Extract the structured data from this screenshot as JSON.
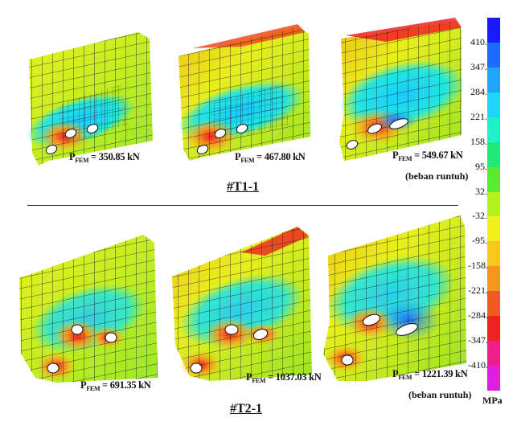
{
  "row1": {
    "title": "#T1-1",
    "panels": [
      {
        "p_prefix": "P",
        "p_sub": "FEM",
        "p_value": "= 350.85 kN",
        "note": ""
      },
      {
        "p_prefix": "P",
        "p_sub": "FEM",
        "p_value": "= 467.80 kN",
        "note": ""
      },
      {
        "p_prefix": "P",
        "p_sub": "FEM",
        "p_value": "= 549.67 kN",
        "note": "(beban runtuh)"
      }
    ]
  },
  "row2": {
    "title": "#T2-1",
    "panels": [
      {
        "p_prefix": "P",
        "p_sub": "FEM",
        "p_value": "= 691.35 kN",
        "note": ""
      },
      {
        "p_prefix": "P",
        "p_sub": "FEM",
        "p_value": "= 1037.03 kN",
        "note": ""
      },
      {
        "p_prefix": "P",
        "p_sub": "FEM",
        "p_value": "= 1221.39 kN",
        "note": "(beban runtuh)"
      }
    ]
  },
  "legend": {
    "unit": "MPa",
    "ticks": [
      "410.",
      "347.",
      "284.",
      "221.",
      "158.",
      "95.",
      "32.",
      "-32.",
      "-95.",
      "-158.",
      "-221.",
      "-284.",
      "-347.",
      "-410."
    ],
    "colors": [
      "#1a1aff",
      "#1e6cff",
      "#1ea6ff",
      "#1ed6ff",
      "#1ef0c8",
      "#22e87a",
      "#58ee2e",
      "#b4f21c",
      "#f0f01c",
      "#f6c81a",
      "#f6961c",
      "#f05a1c",
      "#ee2222",
      "#f01e8c",
      "#e01ee0"
    ]
  }
}
